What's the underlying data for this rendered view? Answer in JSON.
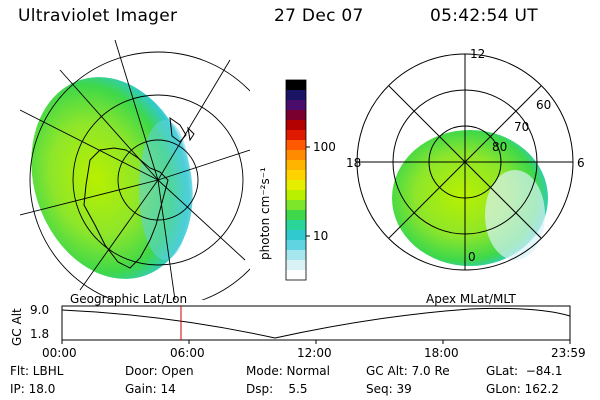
{
  "header": {
    "instrument": "Ultraviolet Imager",
    "date": "27 Dec 07",
    "time": "05:42:54 UT"
  },
  "panels": {
    "left_label": "Geographic Lat/Lon",
    "right_label": "Apex MLat/MLT"
  },
  "colorbar": {
    "unit_label": "photon cm⁻²s⁻¹",
    "ticks": [
      "100",
      "10"
    ],
    "colors": [
      "#000000",
      "#1b1464",
      "#4b0d6b",
      "#7a0030",
      "#b30000",
      "#e01a00",
      "#ff5a00",
      "#ff8c00",
      "#ffb400",
      "#ffd200",
      "#e6ee00",
      "#b8f000",
      "#7ee62a",
      "#3ed84a",
      "#2bd59a",
      "#30c9cf",
      "#61d4e2",
      "#a6e6ee",
      "#d9f2f6",
      "#ffffff"
    ]
  },
  "polar": {
    "lat_labels": [
      "80",
      "70",
      "60"
    ],
    "mlt_labels": [
      "12",
      "18",
      "6",
      "0"
    ]
  },
  "altitude_plot": {
    "axis_label": "GC Alt",
    "y_ticks": [
      "9.0",
      "1.8"
    ],
    "x_ticks": [
      "00:00",
      "06:00",
      "12:00",
      "18:00",
      "23:59"
    ],
    "marker_color": "#cc0000"
  },
  "status": {
    "flt": "Flt: LBHL",
    "ip": "IP: 18.0",
    "door": "Door: Open",
    "gain": "Gain: 14",
    "mode": "Mode: Normal",
    "dsp": "Dsp:    5.5",
    "gc_alt": "GC Alt: 7.0 Re",
    "seq": "Seq: 39",
    "glat": "GLat:  −84.1",
    "glon": "GLon: 162.2"
  }
}
